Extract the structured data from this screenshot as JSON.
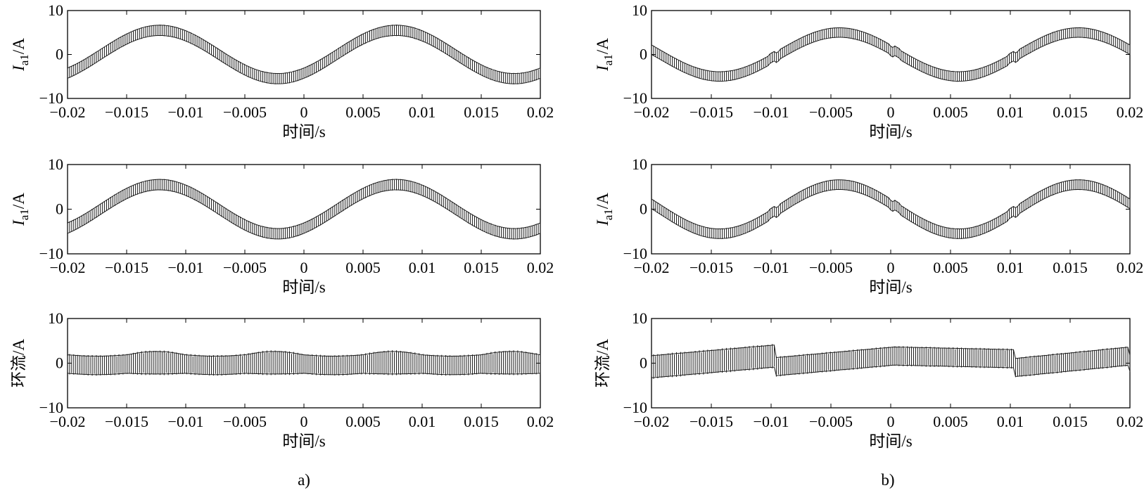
{
  "chart_data": [
    {
      "id": "a-1",
      "panel": "a",
      "type": "line",
      "xlabel": "时间/s",
      "ylabel": "I_a1/A",
      "xlim": [
        -0.02,
        0.02
      ],
      "ylim": [
        -10,
        10
      ],
      "xticks": [
        "−0.02",
        "−0.015",
        "−0.01",
        "−0.005",
        "0",
        "0.005",
        "0.01",
        "0.015",
        "0.02"
      ],
      "yticks": [
        "10",
        "0",
        "−10"
      ],
      "series": [
        {
          "kind": "sine-with-ripple",
          "amplitude": 5.5,
          "frequency_hz": 50,
          "peak_time_s": 0.0078,
          "ripple_pp": 2.6
        }
      ]
    },
    {
      "id": "a-2",
      "panel": "a",
      "type": "line",
      "xlabel": "时间/s",
      "ylabel": "I_a1/A",
      "xlim": [
        -0.02,
        0.02
      ],
      "ylim": [
        -10,
        10
      ],
      "xticks": [
        "−0.02",
        "−0.015",
        "−0.01",
        "−0.005",
        "0",
        "0.005",
        "0.01",
        "0.015",
        "0.02"
      ],
      "yticks": [
        "10",
        "0",
        "−10"
      ],
      "series": [
        {
          "kind": "sine-with-ripple",
          "amplitude": 5.5,
          "frequency_hz": 50,
          "peak_time_s": 0.0078,
          "ripple_pp": 2.6
        }
      ]
    },
    {
      "id": "a-3",
      "panel": "a",
      "type": "line",
      "xlabel": "时间/s",
      "ylabel": "环流/A",
      "xlim": [
        -0.02,
        0.02
      ],
      "ylim": [
        -10,
        10
      ],
      "xticks": [
        "−0.02",
        "−0.015",
        "−0.01",
        "−0.005",
        "0",
        "0.005",
        "0.01",
        "0.015",
        "0.02"
      ],
      "yticks": [
        "10",
        "0",
        "−10"
      ],
      "series": [
        {
          "kind": "circulating-band",
          "center": -0.2,
          "ripple_pp": 4.6,
          "ripple_modulation": 1.0,
          "modulation_hz": 100
        }
      ]
    },
    {
      "id": "b-1",
      "panel": "b",
      "type": "line",
      "xlabel": "时间/s",
      "ylabel": "I_a1/A",
      "xlim": [
        -0.02,
        0.02
      ],
      "ylim": [
        -10,
        10
      ],
      "xticks": [
        "−0.02",
        "−0.015",
        "−0.01",
        "−0.005",
        "0",
        "0.005",
        "0.01",
        "0.015",
        "0.02"
      ],
      "yticks": [
        "10",
        "0",
        "−10"
      ],
      "series": [
        {
          "kind": "sine-with-ripple",
          "amplitude": 5.0,
          "frequency_hz": 50,
          "peak_time_s": -0.0043,
          "ripple_pp": 2.4,
          "step_times_s": [
            -0.0097,
            0.0003,
            0.0103
          ],
          "step_size": 1.5
        }
      ]
    },
    {
      "id": "b-2",
      "panel": "b",
      "type": "line",
      "xlabel": "时间/s",
      "ylabel": "I_a1/A",
      "xlim": [
        -0.02,
        0.02
      ],
      "ylim": [
        -10,
        10
      ],
      "xticks": [
        "−0.02",
        "−0.015",
        "−0.01",
        "−0.005",
        "0",
        "0.005",
        "0.01",
        "0.015",
        "0.02"
      ],
      "yticks": [
        "10",
        "0",
        "−10"
      ],
      "series": [
        {
          "kind": "sine-with-ripple",
          "amplitude": 5.5,
          "frequency_hz": 50,
          "peak_time_s": -0.0043,
          "ripple_pp": 2.4,
          "step_times_s": [
            -0.0097,
            0.0003,
            0.0103
          ],
          "step_size": 1.5
        }
      ]
    },
    {
      "id": "b-3",
      "panel": "b",
      "type": "line",
      "xlabel": "时间/s",
      "ylabel": "环流/A",
      "xlim": [
        -0.02,
        0.02
      ],
      "ylim": [
        -10,
        10
      ],
      "xticks": [
        "−0.02",
        "−0.015",
        "−0.01",
        "−0.005",
        "0",
        "0.005",
        "0.01",
        "0.015",
        "0.02"
      ],
      "yticks": [
        "10",
        "0",
        "−10"
      ],
      "series": [
        {
          "kind": "circulating-sawtooth",
          "segments": [
            {
              "t0": -0.02,
              "t1": -0.0097,
              "center_start": -0.8,
              "center_end": 1.6,
              "ripple_pp": 5.5
            },
            {
              "t0": -0.0097,
              "t1": 0.0003,
              "center_start": -0.8,
              "center_end": 1.6,
              "ripple_pp": 4.5
            },
            {
              "t0": 0.0003,
              "t1": 0.0103,
              "center_start": 1.6,
              "center_end": 1.0,
              "ripple_pp": 4.5
            },
            {
              "t0": 0.0103,
              "t1": 0.02,
              "center_start": -1.0,
              "center_end": 1.6,
              "ripple_pp": 4.5
            }
          ]
        }
      ]
    }
  ],
  "captions": {
    "a": "a)",
    "b": "b)"
  }
}
